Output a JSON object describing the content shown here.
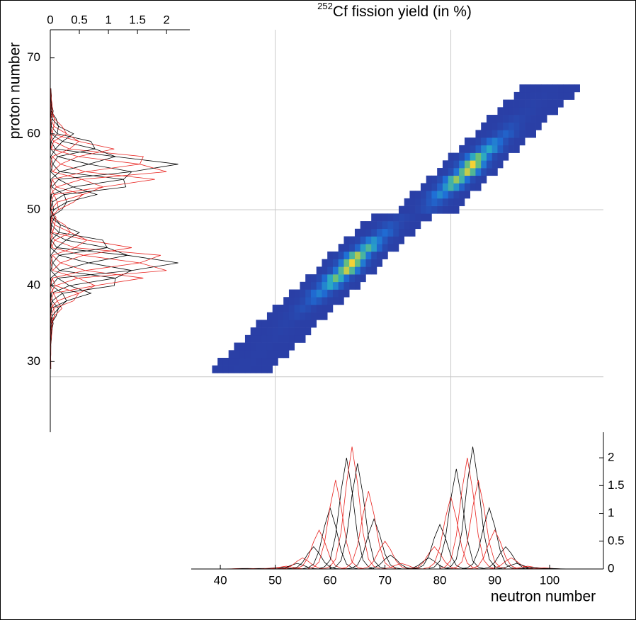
{
  "chart_data": {
    "type": "heatmap",
    "title_superscript": "252",
    "title": "Cf fission yield (in %)",
    "x_label": "neutron number",
    "y_label": "proton number",
    "xlim": [
      34.7,
      109.8
    ],
    "xticks": [
      40,
      50,
      60,
      70,
      80,
      90,
      100
    ],
    "ylim": [
      20.7,
      73.7
    ],
    "yticks": [
      30,
      40,
      50,
      60,
      70
    ],
    "grid_n": [
      50,
      82
    ],
    "grid_z": [
      28,
      50
    ],
    "colorscale": [
      "#2a3fa6",
      "#1f6fd6",
      "#2aa8c4",
      "#74c26e",
      "#f4d236"
    ],
    "zlim": [
      0,
      2.2
    ],
    "line_colors": [
      "#000000",
      "#e8231f"
    ],
    "proj_xlim": [
      0,
      2.4
    ],
    "proj_xticks": [
      0,
      0.5,
      1,
      1.5,
      2
    ],
    "proj_ylim": [
      0,
      2.46
    ],
    "proj_yticks": [
      0,
      0.5,
      1,
      1.5,
      2
    ],
    "rows": [
      {
        "z": 29,
        "n0": 39,
        "values": [
          0.001,
          0.001,
          0.001,
          0.003,
          0.007,
          0.01,
          0.007,
          0.003,
          0.001,
          0.001,
          0.001
        ]
      },
      {
        "z": 30,
        "n0": 40,
        "values": [
          0.001,
          0.001,
          0.001,
          0.003,
          0.007,
          0.01,
          0.007,
          0.003,
          0.001,
          0.001,
          0.001
        ]
      },
      {
        "z": 31,
        "n0": 42,
        "values": [
          0.001,
          0.001,
          0.001,
          0.003,
          0.007,
          0.01,
          0.007,
          0.003,
          0.001,
          0.001,
          0.001
        ]
      },
      {
        "z": 32,
        "n0": 43,
        "values": [
          0.001,
          0.001,
          0.001,
          0.003,
          0.007,
          0.01,
          0.007,
          0.003,
          0.001,
          0.001,
          0.001
        ]
      },
      {
        "z": 33,
        "n0": 45,
        "values": [
          0.001,
          0.001,
          0.002,
          0.006,
          0.014,
          0.02,
          0.014,
          0.006,
          0.002,
          0.001,
          0.001
        ]
      },
      {
        "z": 34,
        "n0": 46,
        "values": [
          0.001,
          0.001,
          0.002,
          0.009,
          0.021,
          0.03,
          0.021,
          0.009,
          0.002,
          0.001,
          0.001
        ]
      },
      {
        "z": 35,
        "n0": 47,
        "values": [
          0.001,
          0.001,
          0.004,
          0.015,
          0.035,
          0.05,
          0.035,
          0.015,
          0.004,
          0.001,
          0.001
        ]
      },
      {
        "z": 36,
        "n0": 49,
        "values": [
          0.001,
          0.002,
          0.008,
          0.03,
          0.07,
          0.1,
          0.07,
          0.03,
          0.008,
          0.002,
          0.001
        ]
      },
      {
        "z": 37,
        "n0": 50,
        "values": [
          0.001,
          0.004,
          0.016,
          0.06,
          0.14,
          0.2,
          0.14,
          0.06,
          0.016,
          0.004,
          0.001
        ]
      },
      {
        "z": 38,
        "n0": 52,
        "values": [
          0.002,
          0.008,
          0.032,
          0.12,
          0.28,
          0.4,
          0.28,
          0.12,
          0.032,
          0.008,
          0.002
        ]
      },
      {
        "z": 39,
        "n0": 53,
        "values": [
          0.004,
          0.014,
          0.056,
          0.21,
          0.49,
          0.7,
          0.49,
          0.21,
          0.056,
          0.014,
          0.004
        ]
      },
      {
        "z": 40,
        "n0": 55,
        "values": [
          0.006,
          0.022,
          0.088,
          0.33,
          0.77,
          1.1,
          0.77,
          0.33,
          0.088,
          0.022,
          0.006
        ]
      },
      {
        "z": 41,
        "n0": 56,
        "values": [
          0.008,
          0.032,
          0.128,
          0.48,
          1.12,
          1.6,
          1.12,
          0.48,
          0.128,
          0.032,
          0.008
        ]
      },
      {
        "z": 42,
        "n0": 58,
        "values": [
          0.01,
          0.04,
          0.16,
          0.6,
          1.4,
          2.0,
          1.4,
          0.6,
          0.16,
          0.04,
          0.01
        ]
      },
      {
        "z": 43,
        "n0": 59,
        "values": [
          0.011,
          0.044,
          0.176,
          0.66,
          1.54,
          2.2,
          1.54,
          0.66,
          0.176,
          0.044,
          0.011
        ]
      },
      {
        "z": 44,
        "n0": 60,
        "values": [
          0.01,
          0.038,
          0.152,
          0.57,
          1.33,
          1.9,
          1.33,
          0.57,
          0.152,
          0.038,
          0.01
        ]
      },
      {
        "z": 45,
        "n0": 62,
        "values": [
          0.007,
          0.028,
          0.112,
          0.42,
          0.98,
          1.4,
          0.98,
          0.42,
          0.112,
          0.028,
          0.007
        ]
      },
      {
        "z": 46,
        "n0": 63,
        "values": [
          0.005,
          0.018,
          0.072,
          0.27,
          0.63,
          0.9,
          0.63,
          0.27,
          0.072,
          0.018,
          0.005
        ]
      },
      {
        "z": 47,
        "n0": 65,
        "values": [
          0.003,
          0.01,
          0.04,
          0.15,
          0.35,
          0.5,
          0.35,
          0.15,
          0.04,
          0.01,
          0.003
        ]
      },
      {
        "z": 48,
        "n0": 66,
        "values": [
          0.001,
          0.005,
          0.02,
          0.075,
          0.175,
          0.25,
          0.175,
          0.075,
          0.02,
          0.005,
          0.001
        ]
      },
      {
        "z": 49,
        "n0": 68,
        "values": [
          0.001,
          0.002,
          0.008,
          0.03,
          0.07,
          0.1,
          0.07,
          0.03,
          0.008,
          0.002,
          0.001
        ]
      },
      {
        "z": 50,
        "n0": 73,
        "values": [
          0.001,
          0.004,
          0.016,
          0.06,
          0.14,
          0.2,
          0.14,
          0.06,
          0.016,
          0.004,
          0.001
        ]
      },
      {
        "z": 51,
        "n0": 74,
        "values": [
          0.002,
          0.008,
          0.032,
          0.12,
          0.28,
          0.4,
          0.28,
          0.12,
          0.032,
          0.008,
          0.002
        ]
      },
      {
        "z": 52,
        "n0": 75,
        "values": [
          0.004,
          0.016,
          0.064,
          0.24,
          0.56,
          0.8,
          0.56,
          0.24,
          0.064,
          0.016,
          0.004
        ]
      },
      {
        "z": 53,
        "n0": 77,
        "values": [
          0.007,
          0.026,
          0.104,
          0.39,
          0.91,
          1.3,
          0.91,
          0.39,
          0.104,
          0.026,
          0.007
        ]
      },
      {
        "z": 54,
        "n0": 78,
        "values": [
          0.009,
          0.036,
          0.144,
          0.54,
          1.26,
          1.8,
          1.26,
          0.54,
          0.144,
          0.036,
          0.009
        ]
      },
      {
        "z": 55,
        "n0": 80,
        "values": [
          0.01,
          0.04,
          0.16,
          0.6,
          1.4,
          2.0,
          1.4,
          0.6,
          0.16,
          0.04,
          0.01
        ]
      },
      {
        "z": 56,
        "n0": 81,
        "values": [
          0.011,
          0.044,
          0.176,
          0.66,
          1.54,
          2.2,
          1.54,
          0.66,
          0.176,
          0.044,
          0.011
        ]
      },
      {
        "z": 57,
        "n0": 82,
        "values": [
          0.008,
          0.032,
          0.128,
          0.48,
          1.12,
          1.6,
          1.12,
          0.48,
          0.128,
          0.032,
          0.008
        ]
      },
      {
        "z": 58,
        "n0": 84,
        "values": [
          0.006,
          0.022,
          0.088,
          0.33,
          0.77,
          1.1,
          0.77,
          0.33,
          0.088,
          0.022,
          0.006
        ]
      },
      {
        "z": 59,
        "n0": 85,
        "values": [
          0.004,
          0.014,
          0.056,
          0.21,
          0.49,
          0.7,
          0.49,
          0.21,
          0.056,
          0.014,
          0.004
        ]
      },
      {
        "z": 60,
        "n0": 87,
        "values": [
          0.002,
          0.008,
          0.032,
          0.12,
          0.28,
          0.4,
          0.28,
          0.12,
          0.032,
          0.008,
          0.002
        ]
      },
      {
        "z": 61,
        "n0": 88,
        "values": [
          0.001,
          0.004,
          0.016,
          0.06,
          0.14,
          0.2,
          0.14,
          0.06,
          0.016,
          0.004,
          0.001
        ]
      },
      {
        "z": 62,
        "n0": 89,
        "values": [
          0.001,
          0.002,
          0.008,
          0.03,
          0.07,
          0.1,
          0.07,
          0.03,
          0.008,
          0.002,
          0.001
        ]
      },
      {
        "z": 63,
        "n0": 91,
        "values": [
          0.001,
          0.001,
          0.004,
          0.015,
          0.035,
          0.05,
          0.035,
          0.015,
          0.004,
          0.001,
          0.001
        ]
      },
      {
        "z": 64,
        "n0": 92,
        "values": [
          0.001,
          0.001,
          0.002,
          0.009,
          0.021,
          0.03,
          0.021,
          0.009,
          0.002,
          0.001,
          0.001
        ]
      },
      {
        "z": 65,
        "n0": 94,
        "values": [
          0.001,
          0.001,
          0.002,
          0.006,
          0.014,
          0.02,
          0.014,
          0.006,
          0.002,
          0.001,
          0.001
        ]
      },
      {
        "z": 66,
        "n0": 95,
        "values": [
          0.001,
          0.001,
          0.001,
          0.003,
          0.007,
          0.01,
          0.007,
          0.003,
          0.001,
          0.001,
          0.001
        ]
      }
    ]
  }
}
